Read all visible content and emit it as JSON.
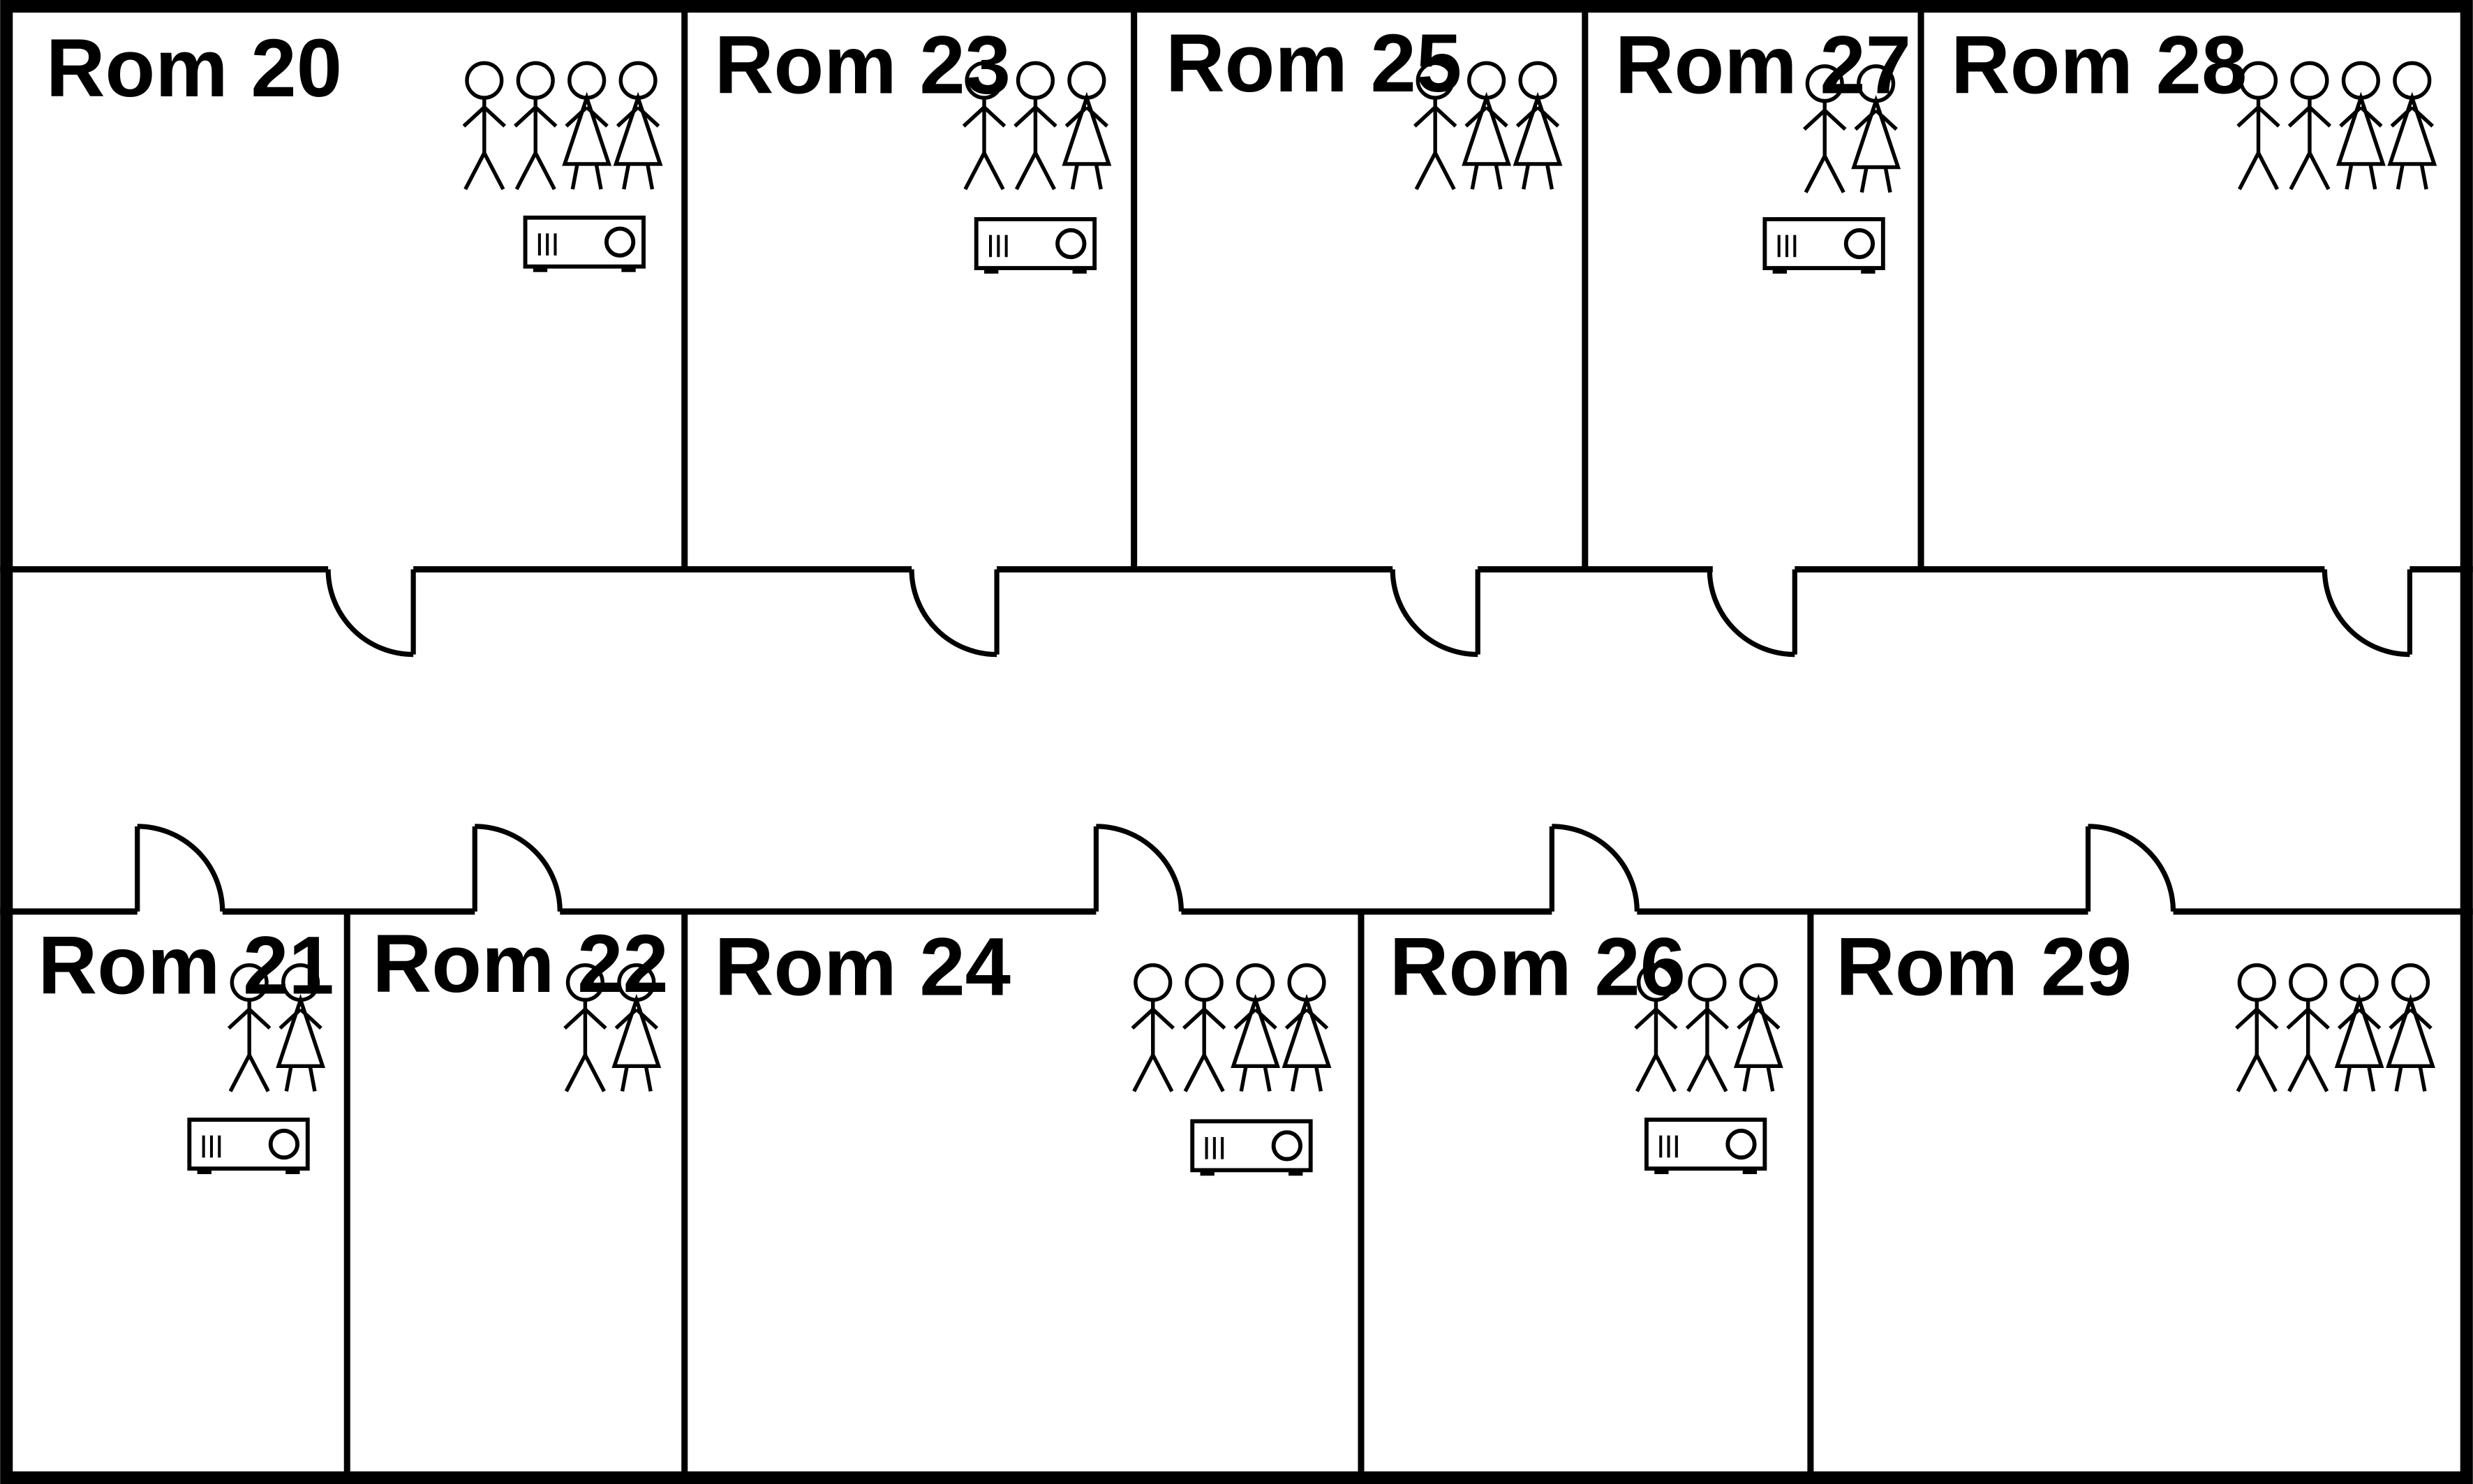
{
  "diagram": {
    "kind": "floor plan",
    "colors": {
      "wall": "#000000",
      "background": "#ffffff"
    },
    "legend_icons": {
      "man": "stick-figure-man-icon",
      "woman": "stick-figure-woman-icon",
      "projector": "projector-icon"
    },
    "rooms": [
      {
        "label": "Rom 20",
        "men": 2,
        "women": 2,
        "projector": true
      },
      {
        "label": "Rom 23",
        "men": 2,
        "women": 1,
        "projector": true
      },
      {
        "label": "Rom 25",
        "men": 1,
        "women": 2,
        "projector": false
      },
      {
        "label": "Rom 27",
        "men": 1,
        "women": 1,
        "projector": true
      },
      {
        "label": "Rom 28",
        "men": 2,
        "women": 2,
        "projector": false
      },
      {
        "label": "Rom 21",
        "men": 1,
        "women": 1,
        "projector": true
      },
      {
        "label": "Rom 22",
        "men": 1,
        "women": 1,
        "projector": false
      },
      {
        "label": "Rom 24",
        "men": 2,
        "women": 2,
        "projector": true
      },
      {
        "label": "Rom 26",
        "men": 2,
        "women": 1,
        "projector": true
      },
      {
        "label": "Rom 29",
        "men": 2,
        "women": 2,
        "projector": false
      }
    ]
  }
}
